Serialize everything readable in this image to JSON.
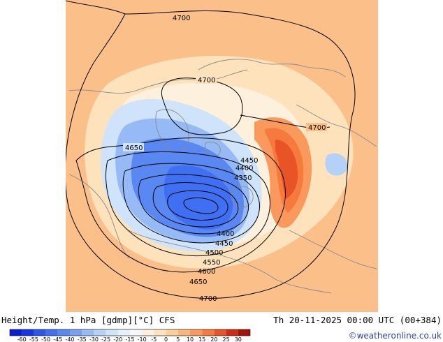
{
  "map": {
    "contour_labels": [
      {
        "text": "4700"
      },
      {
        "text": "4700"
      },
      {
        "text": "4700"
      },
      {
        "text": "4650"
      },
      {
        "text": "4450"
      },
      {
        "text": "4400"
      },
      {
        "text": "4350"
      },
      {
        "text": "4400"
      },
      {
        "text": "4450"
      },
      {
        "text": "4500"
      },
      {
        "text": "4550"
      },
      {
        "text": "4600"
      },
      {
        "text": "4650"
      },
      {
        "text": "4700"
      }
    ]
  },
  "footer": {
    "title": "Height/Temp. 1 hPa [gdmp][°C] CFS",
    "datetime": "Th 20-11-2025 00:00 UTC (00+384)",
    "credit": "©weatheronline.co.uk"
  },
  "colorbar": {
    "ticks": [
      "-60",
      "-55",
      "-50",
      "-45",
      "-40",
      "-35",
      "-30",
      "-25",
      "-20",
      "-15",
      "-10",
      "-5",
      "0",
      "5",
      "10",
      "15",
      "20",
      "25",
      "30"
    ],
    "colors": [
      "#0a1cd6",
      "#1432e6",
      "#2a55f0",
      "#3f6ff2",
      "#5a88f2",
      "#77a0f4",
      "#96baf6",
      "#b4d2f8",
      "#cfe4fa",
      "#e4f0fb",
      "#f4f8fc",
      "#fdf0dc",
      "#fde2bc",
      "#fccf9a",
      "#fbb67a",
      "#f99a5c",
      "#f67a3e",
      "#e85426",
      "#d02c14",
      "#a8100a"
    ]
  }
}
